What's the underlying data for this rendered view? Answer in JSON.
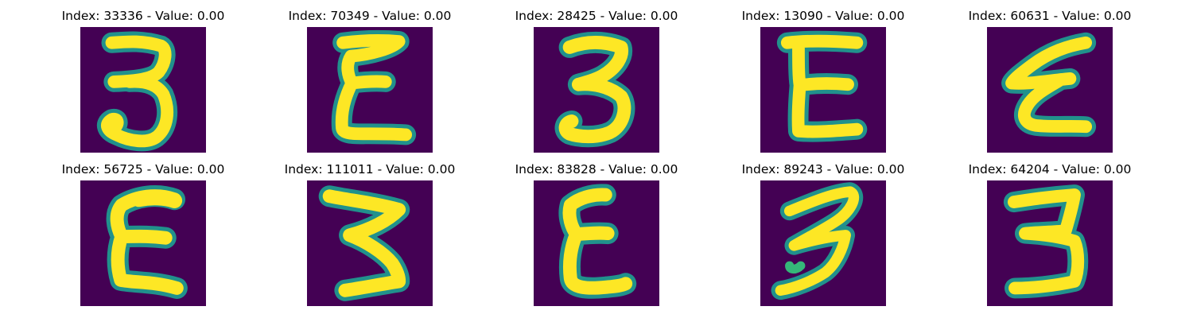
{
  "colors": {
    "background": "#440154",
    "stroke_core": "#fde725",
    "stroke_mid": "#35b779",
    "stroke_edge": "#21918c"
  },
  "panels": [
    {
      "title": "Index: 33336 - Value: 0.00",
      "glyph": "3"
    },
    {
      "title": "Index: 70349 - Value: 0.00",
      "glyph": "E"
    },
    {
      "title": "Index: 28425 - Value: 0.00",
      "glyph": "3"
    },
    {
      "title": "Index: 13090 - Value: 0.00",
      "glyph": "E"
    },
    {
      "title": "Index: 60631 - Value: 0.00",
      "glyph": "E"
    },
    {
      "title": "Index: 56725 - Value: 0.00",
      "glyph": "E"
    },
    {
      "title": "Index: 111011 - Value: 0.00",
      "glyph": "3"
    },
    {
      "title": "Index: 83828 - Value: 0.00",
      "glyph": "E"
    },
    {
      "title": "Index: 89243 - Value: 0.00",
      "glyph": "3"
    },
    {
      "title": "Index: 64204 - Value: 0.00",
      "glyph": "3"
    }
  ]
}
